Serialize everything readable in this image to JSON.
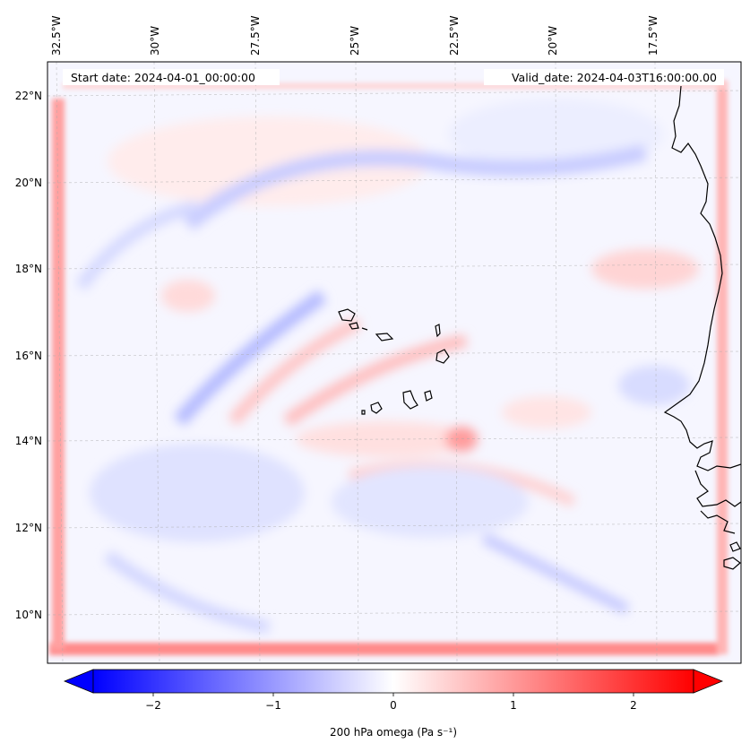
{
  "header": {
    "start_date": "Start date: 2024-04-01_00:00:00",
    "valid_date": "Valid_date: 2024-04-03T16:00:00.00"
  },
  "map": {
    "lon_labels": [
      "32.5°W",
      "30°W",
      "27.5°W",
      "25°W",
      "22.5°W",
      "20°W",
      "17.5°W"
    ],
    "lat_labels": [
      "22°N",
      "20°N",
      "18°N",
      "16°N",
      "14°N",
      "12°N",
      "10°N"
    ],
    "gridlines": true,
    "coastline_color": "#000000",
    "field_colors": {
      "negative": "#0000ff",
      "zero": "#ffffff",
      "positive": "#ff0000"
    }
  },
  "colorbar": {
    "ticks": [
      "−2",
      "−1",
      "0",
      "1",
      "2"
    ],
    "tick_values": [
      -2,
      -1,
      0,
      1,
      2
    ],
    "range": [
      -2.5,
      2.5
    ],
    "extend": "both",
    "label": "200 hPa omega (Pa s⁻¹)"
  }
}
